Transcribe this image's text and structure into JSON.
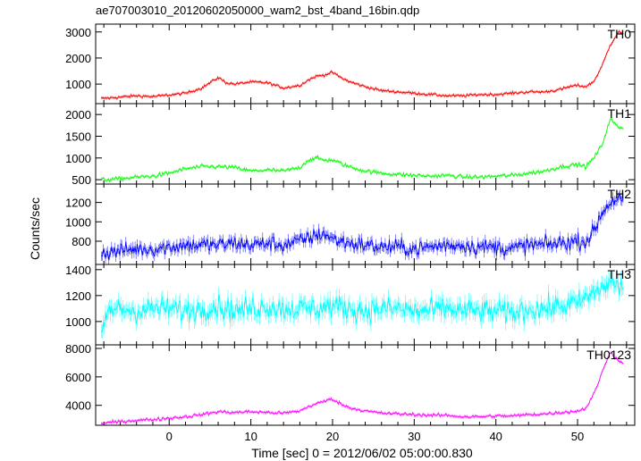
{
  "chart_data": {
    "type": "line",
    "title": "ae707003010_20120602050000_wam2_bst_4band_16bin.qdp",
    "xlabel": "Time [sec] 0 = 2012/06/02 05:00:00.830",
    "ylabel": "Counts/sec",
    "xlim": [
      -9,
      57
    ],
    "x_ticks": [
      0,
      10,
      20,
      30,
      40,
      50
    ],
    "grid": false,
    "panels": [
      {
        "name": "TH0",
        "color": "#ff0000",
        "ylim": [
          250,
          3300
        ],
        "y_ticks": [
          1000,
          2000,
          3000
        ],
        "noise": 50,
        "x": [
          -8,
          -6,
          -4,
          -2,
          0,
          2,
          4,
          5,
          6,
          7,
          8,
          10,
          12,
          14,
          16,
          17,
          18,
          19,
          20,
          21,
          22,
          24,
          26,
          28,
          30,
          32,
          34,
          36,
          38,
          40,
          42,
          44,
          46,
          48,
          49,
          50,
          51,
          52,
          53,
          54,
          55,
          56
        ],
        "values": [
          450,
          500,
          550,
          520,
          580,
          650,
          850,
          1050,
          1250,
          1050,
          1000,
          1080,
          1050,
          850,
          950,
          1150,
          1300,
          1350,
          1450,
          1250,
          1100,
          900,
          750,
          700,
          650,
          600,
          550,
          550,
          600,
          600,
          650,
          700,
          700,
          800,
          900,
          950,
          900,
          1100,
          1700,
          2500,
          3000,
          2900
        ]
      },
      {
        "name": "TH1",
        "color": "#00ff00",
        "ylim": [
          400,
          2250
        ],
        "y_ticks": [
          500,
          1000,
          1500,
          2000
        ],
        "noise": 45,
        "x": [
          -8,
          -6,
          -4,
          -2,
          0,
          2,
          4,
          6,
          8,
          10,
          12,
          14,
          16,
          17,
          18,
          19,
          20,
          22,
          24,
          26,
          28,
          30,
          32,
          34,
          36,
          38,
          40,
          42,
          44,
          46,
          48,
          50,
          51,
          52,
          53,
          54,
          55,
          56
        ],
        "values": [
          500,
          520,
          560,
          580,
          650,
          750,
          800,
          800,
          780,
          700,
          720,
          700,
          780,
          950,
          1000,
          950,
          950,
          800,
          700,
          650,
          620,
          600,
          580,
          600,
          560,
          560,
          580,
          600,
          650,
          700,
          800,
          850,
          800,
          1000,
          1300,
          1900,
          1700,
          1700
        ]
      },
      {
        "name": "TH2",
        "color": "#0000ff",
        "ylim": [
          560,
          1390
        ],
        "y_ticks": [
          800,
          1000,
          1200
        ],
        "noise": 80,
        "x": [
          -8,
          -6,
          -4,
          -2,
          0,
          2,
          4,
          6,
          8,
          10,
          12,
          14,
          16,
          18,
          19,
          20,
          22,
          24,
          26,
          28,
          30,
          32,
          34,
          36,
          38,
          40,
          42,
          44,
          46,
          48,
          50,
          51,
          52,
          53,
          54,
          55,
          56
        ],
        "values": [
          680,
          700,
          720,
          720,
          740,
          760,
          760,
          760,
          780,
          760,
          780,
          760,
          800,
          860,
          880,
          820,
          780,
          760,
          740,
          740,
          720,
          740,
          760,
          760,
          740,
          740,
          720,
          760,
          760,
          780,
          800,
          800,
          900,
          1100,
          1200,
          1250,
          1150
        ]
      },
      {
        "name": "TH3",
        "color": "#00ffff",
        "ylim": [
          820,
          1440
        ],
        "y_ticks": [
          1000,
          1200,
          1400
        ],
        "noise": 90,
        "x": [
          -8,
          -7.5,
          -6,
          -4,
          -2,
          0,
          2,
          4,
          6,
          8,
          10,
          12,
          14,
          16,
          18,
          20,
          22,
          24,
          26,
          28,
          30,
          32,
          34,
          36,
          38,
          40,
          42,
          44,
          46,
          48,
          50,
          52,
          54,
          56
        ],
        "values": [
          920,
          1080,
          1100,
          1080,
          1100,
          1100,
          1080,
          1100,
          1120,
          1080,
          1100,
          1120,
          1100,
          1100,
          1100,
          1120,
          1100,
          1080,
          1100,
          1100,
          1080,
          1080,
          1100,
          1080,
          1080,
          1080,
          1060,
          1100,
          1100,
          1120,
          1140,
          1220,
          1300,
          1250
        ]
      },
      {
        "name": "TH0123",
        "color": "#ff00ff",
        "ylim": [
          2600,
          8250
        ],
        "y_ticks": [
          4000,
          6000,
          8000
        ],
        "noise": 110,
        "x": [
          -8,
          -6,
          -4,
          -2,
          0,
          2,
          4,
          6,
          8,
          10,
          12,
          14,
          16,
          17,
          18,
          19,
          20,
          21,
          22,
          24,
          26,
          28,
          30,
          32,
          34,
          36,
          38,
          40,
          42,
          44,
          46,
          48,
          50,
          51,
          52,
          53,
          54,
          55,
          56
        ],
        "values": [
          2750,
          2850,
          2950,
          3000,
          3100,
          3200,
          3350,
          3550,
          3500,
          3550,
          3500,
          3450,
          3600,
          3900,
          4100,
          4300,
          4450,
          4100,
          3850,
          3600,
          3450,
          3400,
          3350,
          3300,
          3300,
          3200,
          3200,
          3250,
          3250,
          3350,
          3400,
          3500,
          3600,
          3800,
          4800,
          6300,
          7800,
          7100,
          7000
        ]
      }
    ]
  }
}
